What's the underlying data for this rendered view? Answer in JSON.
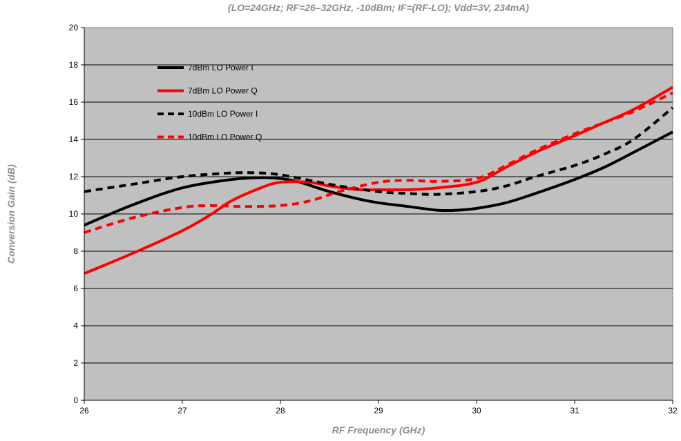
{
  "chart_data": {
    "type": "line",
    "title": "(LO=24GHz; RF=26–32GHz, -10dBm; IF=(RF-LO); Vdd=3V, 234mA)",
    "xlabel": "RF Frequency (GHz)",
    "ylabel": "Conversion Gain (dB)",
    "xlim": [
      26,
      32
    ],
    "ylim": [
      0,
      20
    ],
    "x_ticks": [
      "26",
      "27",
      "28",
      "29",
      "30",
      "31",
      "32"
    ],
    "y_ticks": [
      "0",
      "2",
      "4",
      "6",
      "8",
      "10",
      "12",
      "14",
      "16",
      "18",
      "20"
    ],
    "grid": "horizontal",
    "legend_position": "top-left",
    "plot_background": "#c0c0c0",
    "series": [
      {
        "name": "7dBm LO Power I",
        "color": "#000000",
        "dash": "solid",
        "points": [
          [
            26,
            9.4
          ],
          [
            26.5,
            10.5
          ],
          [
            27,
            11.4
          ],
          [
            27.5,
            11.85
          ],
          [
            27.8,
            11.95
          ],
          [
            28,
            11.9
          ],
          [
            28.2,
            11.7
          ],
          [
            28.5,
            11.2
          ],
          [
            28.8,
            10.8
          ],
          [
            29,
            10.6
          ],
          [
            29.3,
            10.4
          ],
          [
            29.6,
            10.2
          ],
          [
            29.8,
            10.2
          ],
          [
            30,
            10.3
          ],
          [
            30.3,
            10.6
          ],
          [
            30.6,
            11.1
          ],
          [
            31,
            11.85
          ],
          [
            31.3,
            12.5
          ],
          [
            31.6,
            13.3
          ],
          [
            32,
            14.4
          ]
        ]
      },
      {
        "name": "7dBm LO Power Q",
        "color": "#ff0000",
        "dash": "solid",
        "points": [
          [
            26,
            6.8
          ],
          [
            26.5,
            7.9
          ],
          [
            27,
            9.1
          ],
          [
            27.3,
            10.0
          ],
          [
            27.5,
            10.7
          ],
          [
            27.8,
            11.4
          ],
          [
            28,
            11.7
          ],
          [
            28.3,
            11.7
          ],
          [
            28.5,
            11.5
          ],
          [
            28.8,
            11.3
          ],
          [
            29,
            11.3
          ],
          [
            29.3,
            11.3
          ],
          [
            29.6,
            11.4
          ],
          [
            30,
            11.7
          ],
          [
            30.3,
            12.5
          ],
          [
            30.6,
            13.3
          ],
          [
            31,
            14.2
          ],
          [
            31.3,
            14.9
          ],
          [
            31.6,
            15.6
          ],
          [
            32,
            16.8
          ]
        ]
      },
      {
        "name": "10dBm LO Power I",
        "color": "#000000",
        "dash": "dashed",
        "points": [
          [
            26,
            11.2
          ],
          [
            26.5,
            11.6
          ],
          [
            27,
            12.0
          ],
          [
            27.5,
            12.2
          ],
          [
            27.8,
            12.2
          ],
          [
            28,
            12.1
          ],
          [
            28.3,
            11.8
          ],
          [
            28.6,
            11.5
          ],
          [
            29,
            11.2
          ],
          [
            29.3,
            11.1
          ],
          [
            29.6,
            11.05
          ],
          [
            30,
            11.2
          ],
          [
            30.3,
            11.5
          ],
          [
            30.6,
            12.0
          ],
          [
            31,
            12.6
          ],
          [
            31.3,
            13.2
          ],
          [
            31.6,
            14.0
          ],
          [
            32,
            15.7
          ]
        ]
      },
      {
        "name": "10dBm LO Power Q",
        "color": "#ff0000",
        "dash": "dashed",
        "points": [
          [
            26,
            9.0
          ],
          [
            26.5,
            9.8
          ],
          [
            27,
            10.35
          ],
          [
            27.3,
            10.45
          ],
          [
            27.6,
            10.4
          ],
          [
            28,
            10.45
          ],
          [
            28.3,
            10.7
          ],
          [
            28.6,
            11.2
          ],
          [
            29,
            11.7
          ],
          [
            29.3,
            11.8
          ],
          [
            29.6,
            11.75
          ],
          [
            30,
            11.9
          ],
          [
            30.3,
            12.6
          ],
          [
            30.6,
            13.4
          ],
          [
            31,
            14.3
          ],
          [
            31.3,
            14.9
          ],
          [
            31.6,
            15.5
          ],
          [
            32,
            16.5
          ]
        ]
      }
    ]
  }
}
